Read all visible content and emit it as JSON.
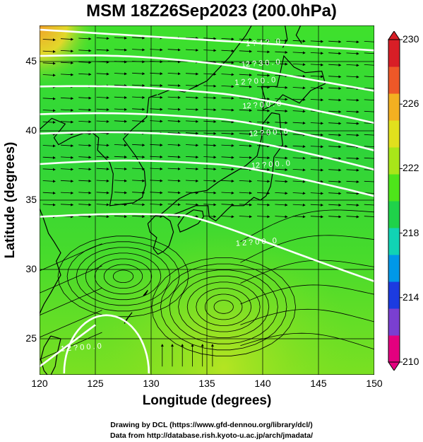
{
  "header": {
    "title": "MSM 18Z26Sep2023 (200.0hPa)"
  },
  "axes": {
    "xlabel": "Longitude (degrees)",
    "ylabel": "Latitude  (degrees)",
    "x_ticks": [
      "120",
      "125",
      "130",
      "135",
      "140",
      "145",
      "150"
    ],
    "y_ticks": [
      "25",
      "30",
      "35",
      "40",
      "45"
    ]
  },
  "map_data": {
    "type": "geopotential height contours with streamlines over temperature shading",
    "lon_range": [
      120,
      150
    ],
    "lat_range": [
      22.4,
      47.6
    ],
    "contour_labels": [
      "1 ? 4 ? . 0",
      "12 ? 3 0 . 0",
      "1 2 ? 0 0 . 0",
      "12 ? 0 0 . 0",
      "12 ? 0 0 . 0",
      "12 ? 0 0 . 0",
      "1 2 ? 0 0 . 0",
      "1 2 ? 0 0 . 0"
    ],
    "colorbar": {
      "ticks": [
        "230",
        "226",
        "222",
        "218",
        "214",
        "210"
      ],
      "range": [
        210,
        230
      ],
      "colors": [
        "#e4007f",
        "#7a3fd1",
        "#1c3be0",
        "#0098e8",
        "#11d3b4",
        "#1fd24a",
        "#4ee51a",
        "#a9e619",
        "#e1e01d",
        "#f3b021",
        "#ee5828",
        "#d81e26"
      ]
    }
  },
  "footer": {
    "line1": "Drawing by DCL (https://www.gfd-dennou.org/library/dcl/)",
    "line2": "Data from http://database.rish.kyoto-u.ac.jp/arch/jmadata/"
  }
}
